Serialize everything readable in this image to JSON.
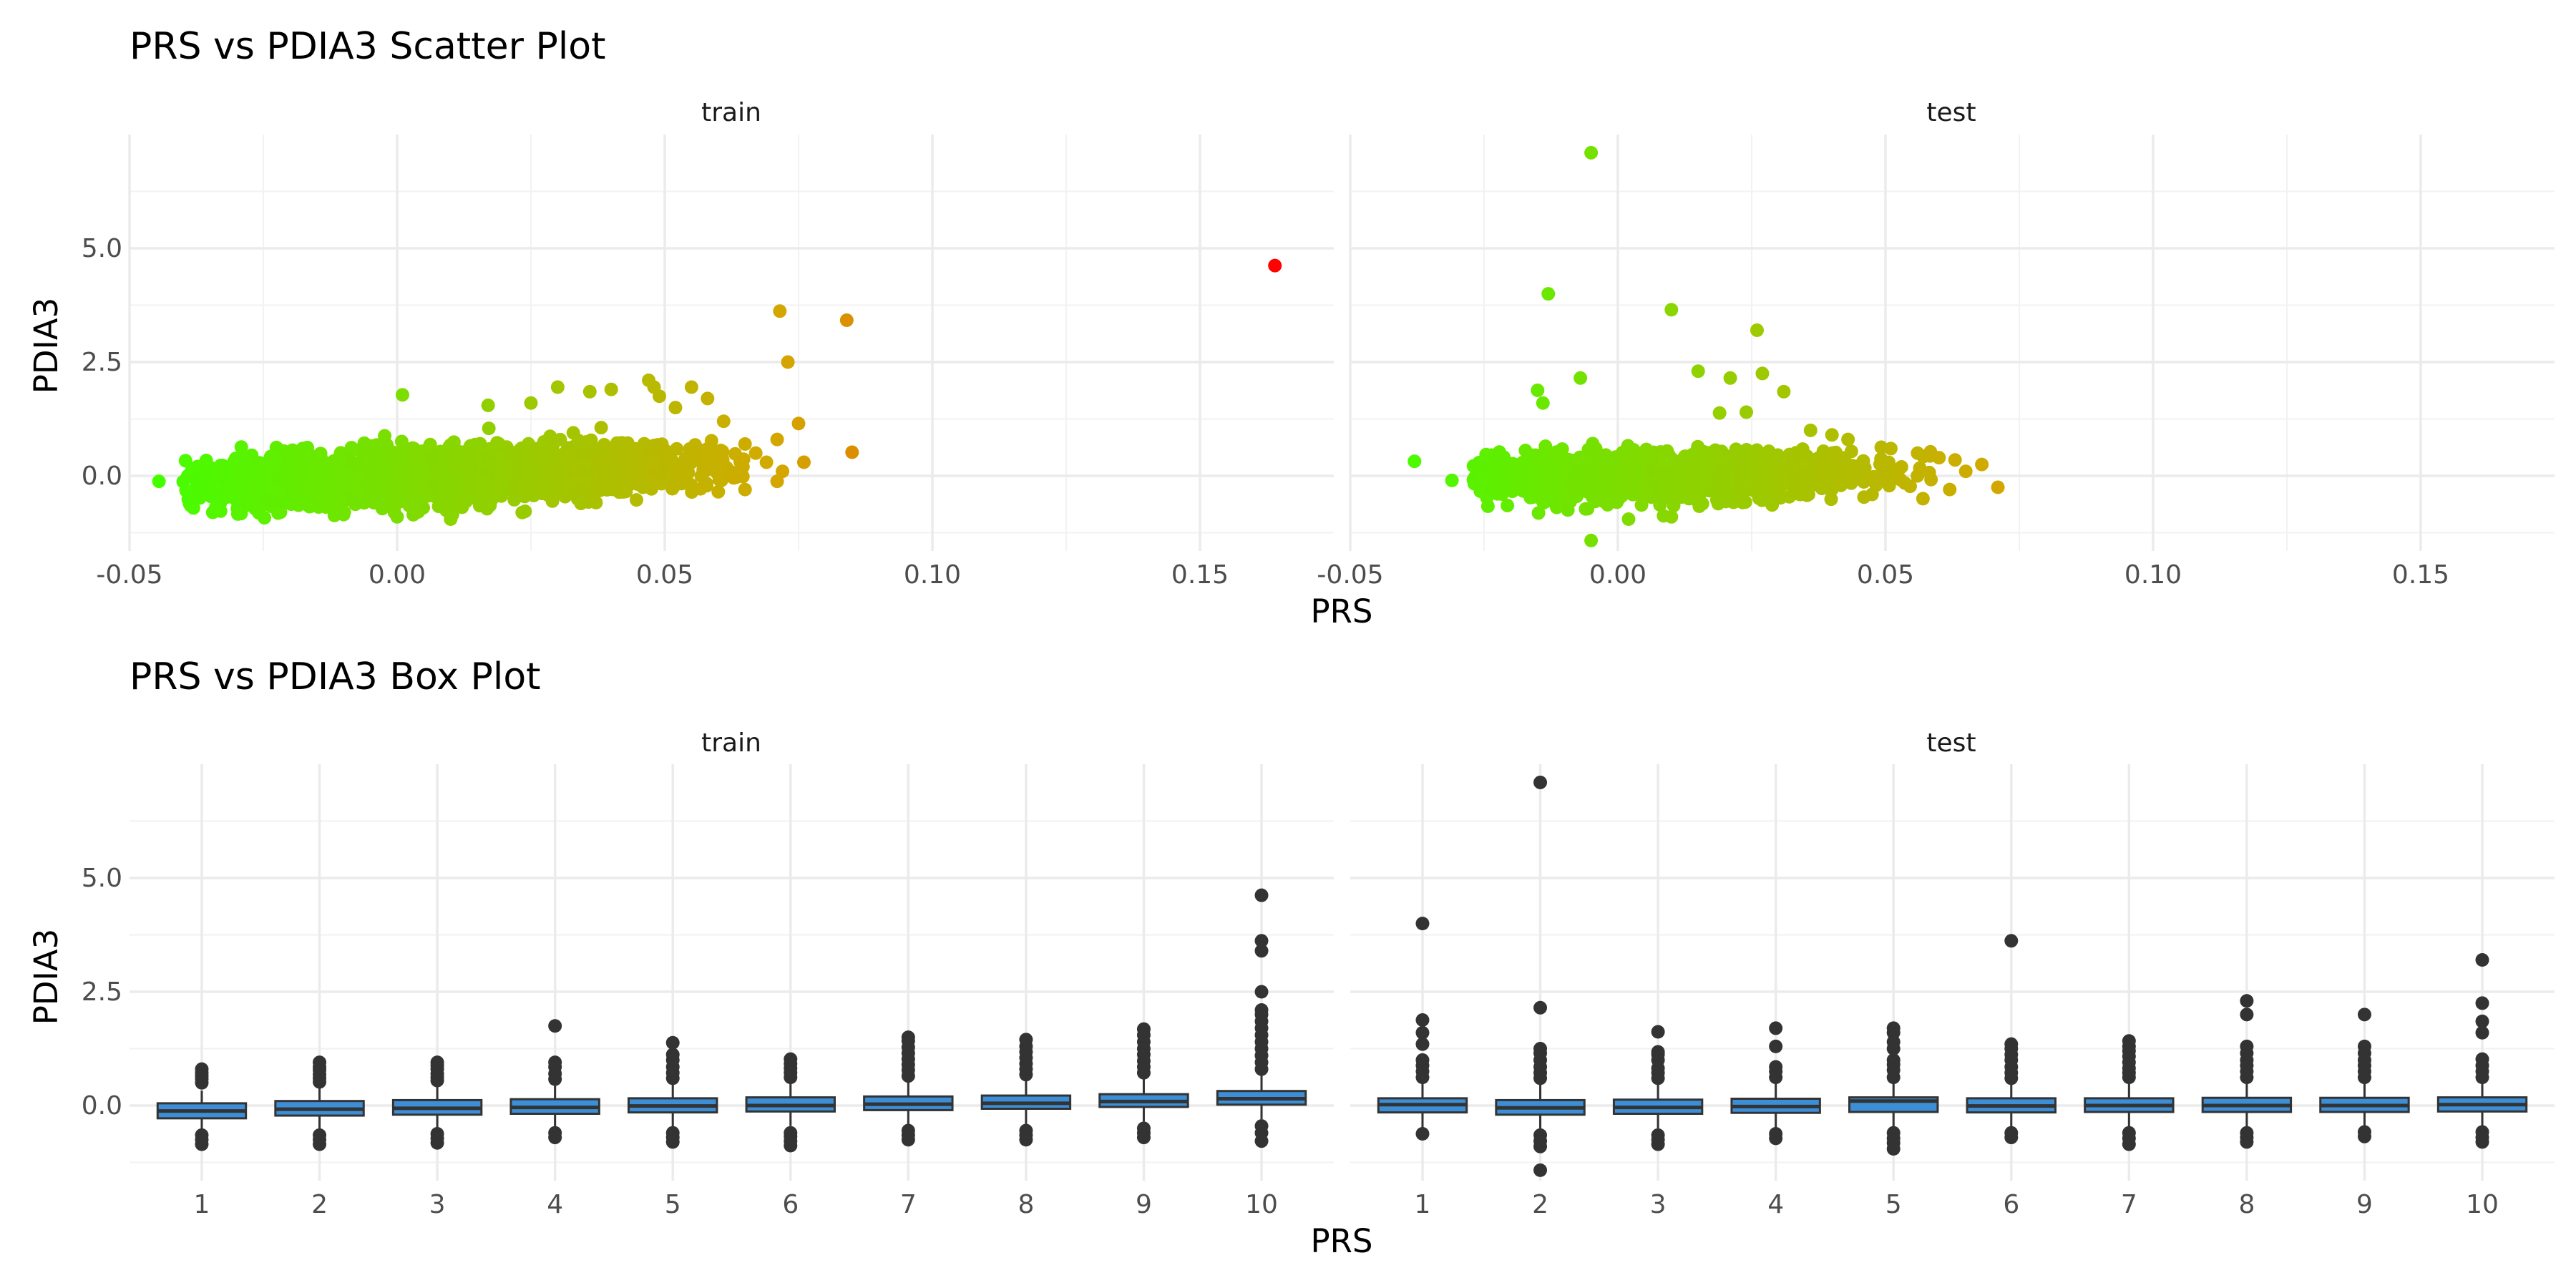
{
  "chart_data": [
    {
      "type": "scatter",
      "title": "PRS vs PDIA3 Scatter Plot",
      "xlabel": "PRS",
      "ylabel": "PDIA3",
      "xlim": [
        -0.05,
        0.175
      ],
      "ylim": [
        -1.65,
        7.5
      ],
      "x_ticks": [
        {
          "v": -0.05,
          "label": "-0.05"
        },
        {
          "v": 0.0,
          "label": "0.00"
        },
        {
          "v": 0.05,
          "label": "0.05"
        },
        {
          "v": 0.1,
          "label": "0.10"
        },
        {
          "v": 0.15,
          "label": "0.15"
        }
      ],
      "y_ticks": [
        {
          "v": 0.0,
          "label": "0.0"
        },
        {
          "v": 2.5,
          "label": "2.5"
        },
        {
          "v": 5.0,
          "label": "5.0"
        }
      ],
      "color_scale": {
        "low": "#44ff00",
        "mid": "#d4a800",
        "high": "#ff0000",
        "min_x": -0.045,
        "max_x": 0.165
      },
      "grid": true,
      "facets": [
        {
          "name": "train",
          "cloud": {
            "x_min": -0.04,
            "x_max": 0.065,
            "x_center": 0.008,
            "y_center": 0.0,
            "y_spread": 0.28,
            "slope": 9.0,
            "n": 2600
          },
          "points": [
            {
              "x": -0.0445,
              "y": -0.12
            },
            {
              "x": -0.037,
              "y": -0.35
            },
            {
              "x": -0.036,
              "y": 0.0
            },
            {
              "x": 0.001,
              "y": 1.78
            },
            {
              "x": 0.017,
              "y": 1.55
            },
            {
              "x": 0.025,
              "y": 1.6
            },
            {
              "x": 0.03,
              "y": 1.95
            },
            {
              "x": 0.036,
              "y": 1.85
            },
            {
              "x": 0.04,
              "y": 1.9
            },
            {
              "x": 0.047,
              "y": 2.1
            },
            {
              "x": 0.049,
              "y": 1.75
            },
            {
              "x": 0.048,
              "y": 1.95
            },
            {
              "x": 0.055,
              "y": 1.95
            },
            {
              "x": 0.058,
              "y": 1.7
            },
            {
              "x": 0.052,
              "y": 1.5
            },
            {
              "x": 0.061,
              "y": 1.2
            },
            {
              "x": 0.065,
              "y": 0.7
            },
            {
              "x": 0.067,
              "y": 0.5
            },
            {
              "x": 0.069,
              "y": 0.3
            },
            {
              "x": 0.071,
              "y": 0.8
            },
            {
              "x": 0.072,
              "y": 0.1
            },
            {
              "x": 0.0715,
              "y": 3.62
            },
            {
              "x": 0.073,
              "y": 2.5
            },
            {
              "x": 0.075,
              "y": 1.15
            },
            {
              "x": 0.076,
              "y": 0.3
            },
            {
              "x": 0.084,
              "y": 3.42
            },
            {
              "x": 0.085,
              "y": 0.52
            },
            {
              "x": 0.065,
              "y": -0.3
            },
            {
              "x": 0.06,
              "y": -0.35
            },
            {
              "x": 0.071,
              "y": -0.12
            },
            {
              "x": 0.0,
              "y": -0.9
            },
            {
              "x": 0.01,
              "y": -0.95
            },
            {
              "x": -0.01,
              "y": -0.85
            },
            {
              "x": 0.164,
              "y": 4.62
            }
          ]
        },
        {
          "name": "test",
          "cloud": {
            "x_min": -0.027,
            "x_max": 0.06,
            "x_center": 0.007,
            "y_center": 0.0,
            "y_spread": 0.26,
            "slope": 3.0,
            "n": 1400
          },
          "points": [
            {
              "x": -0.038,
              "y": 0.32
            },
            {
              "x": -0.031,
              "y": -0.1
            },
            {
              "x": -0.005,
              "y": 7.1
            },
            {
              "x": -0.013,
              "y": 4.0
            },
            {
              "x": 0.01,
              "y": 3.65
            },
            {
              "x": 0.026,
              "y": 3.2
            },
            {
              "x": -0.007,
              "y": 2.15
            },
            {
              "x": -0.015,
              "y": 1.88
            },
            {
              "x": -0.014,
              "y": 1.6
            },
            {
              "x": 0.015,
              "y": 2.3
            },
            {
              "x": 0.021,
              "y": 2.15
            },
            {
              "x": 0.027,
              "y": 2.25
            },
            {
              "x": 0.031,
              "y": 1.85
            },
            {
              "x": 0.019,
              "y": 1.38
            },
            {
              "x": 0.024,
              "y": 1.4
            },
            {
              "x": 0.036,
              "y": 1.0
            },
            {
              "x": 0.04,
              "y": 0.9
            },
            {
              "x": 0.043,
              "y": 0.8
            },
            {
              "x": 0.051,
              "y": 0.6
            },
            {
              "x": 0.056,
              "y": 0.5
            },
            {
              "x": 0.06,
              "y": 0.4
            },
            {
              "x": 0.063,
              "y": 0.35
            },
            {
              "x": 0.065,
              "y": 0.1
            },
            {
              "x": 0.062,
              "y": -0.3
            },
            {
              "x": 0.068,
              "y": 0.25
            },
            {
              "x": 0.071,
              "y": -0.25
            },
            {
              "x": 0.057,
              "y": -0.5
            },
            {
              "x": -0.005,
              "y": -1.42
            },
            {
              "x": 0.002,
              "y": -0.95
            },
            {
              "x": 0.01,
              "y": -0.9
            }
          ]
        }
      ]
    },
    {
      "type": "box",
      "title": "PRS vs PDIA3 Box Plot",
      "xlabel": "PRS",
      "ylabel": "PDIA3",
      "categories": [
        "1",
        "2",
        "3",
        "4",
        "5",
        "6",
        "7",
        "8",
        "9",
        "10"
      ],
      "ylim": [
        -1.65,
        7.5
      ],
      "y_ticks": [
        {
          "v": 0.0,
          "label": "0.0"
        },
        {
          "v": 2.5,
          "label": "2.5"
        },
        {
          "v": 5.0,
          "label": "5.0"
        }
      ],
      "box_fill": "#3c8fd6",
      "box_line": "#333333",
      "grid": true,
      "facets": [
        {
          "name": "train",
          "boxes": [
            {
              "q1": -0.28,
              "median": -0.12,
              "q3": 0.05,
              "lo": -0.58,
              "hi": 0.33,
              "outliers": [
                0.5,
                0.58,
                0.65,
                0.72,
                0.8,
                -0.65,
                -0.75,
                -0.85
              ]
            },
            {
              "q1": -0.22,
              "median": -0.08,
              "q3": 0.1,
              "lo": -0.52,
              "hi": 0.42,
              "outliers": [
                0.52,
                0.6,
                0.68,
                0.78,
                0.85,
                0.95,
                -0.65,
                -0.75,
                -0.85
              ]
            },
            {
              "q1": -0.2,
              "median": -0.06,
              "q3": 0.12,
              "lo": -0.5,
              "hi": 0.44,
              "outliers": [
                0.55,
                0.62,
                0.7,
                0.8,
                0.88,
                0.95,
                -0.62,
                -0.72,
                -0.82
              ]
            },
            {
              "q1": -0.18,
              "median": -0.04,
              "q3": 0.14,
              "lo": -0.48,
              "hi": 0.46,
              "outliers": [
                0.58,
                0.7,
                0.85,
                0.95,
                1.75,
                -0.6,
                -0.7
              ]
            },
            {
              "q1": -0.15,
              "median": -0.01,
              "q3": 0.16,
              "lo": -0.46,
              "hi": 0.5,
              "outliers": [
                0.6,
                0.72,
                0.85,
                1.0,
                1.12,
                1.38,
                -0.6,
                -0.7,
                -0.8
              ]
            },
            {
              "q1": -0.13,
              "median": 0.0,
              "q3": 0.18,
              "lo": -0.45,
              "hi": 0.5,
              "outliers": [
                0.62,
                0.72,
                0.82,
                0.92,
                1.02,
                -0.6,
                -0.68,
                -0.78,
                -0.88
              ]
            },
            {
              "q1": -0.1,
              "median": 0.03,
              "q3": 0.2,
              "lo": -0.42,
              "hi": 0.55,
              "outliers": [
                0.65,
                0.78,
                0.9,
                1.02,
                1.15,
                1.28,
                1.42,
                1.5,
                -0.55,
                -0.65,
                -0.75
              ]
            },
            {
              "q1": -0.07,
              "median": 0.05,
              "q3": 0.22,
              "lo": -0.4,
              "hi": 0.58,
              "outliers": [
                0.68,
                0.8,
                0.92,
                1.05,
                1.18,
                1.3,
                1.45,
                -0.55,
                -0.65,
                -0.75
              ]
            },
            {
              "q1": -0.03,
              "median": 0.09,
              "q3": 0.25,
              "lo": -0.35,
              "hi": 0.62,
              "outliers": [
                0.72,
                0.85,
                0.98,
                1.12,
                1.25,
                1.4,
                1.55,
                1.68,
                -0.5,
                -0.6,
                -0.7
              ]
            },
            {
              "q1": 0.02,
              "median": 0.15,
              "q3": 0.32,
              "lo": -0.3,
              "hi": 0.7,
              "outliers": [
                0.8,
                0.95,
                1.1,
                1.25,
                1.4,
                1.55,
                1.7,
                1.85,
                2.0,
                2.1,
                2.5,
                3.4,
                3.62,
                4.62,
                -0.45,
                -0.6,
                -0.78
              ]
            }
          ]
        },
        {
          "name": "test",
          "boxes": [
            {
              "q1": -0.15,
              "median": 0.02,
              "q3": 0.16,
              "lo": -0.48,
              "hi": 0.5,
              "outliers": [
                0.62,
                0.75,
                0.88,
                1.0,
                1.35,
                1.6,
                1.88,
                4.0,
                -0.62
              ]
            },
            {
              "q1": -0.2,
              "median": -0.05,
              "q3": 0.12,
              "lo": -0.52,
              "hi": 0.46,
              "outliers": [
                0.6,
                0.72,
                0.85,
                1.0,
                1.15,
                1.25,
                2.15,
                7.1,
                -0.65,
                -0.78,
                -0.9,
                -1.42
              ]
            },
            {
              "q1": -0.18,
              "median": -0.04,
              "q3": 0.13,
              "lo": -0.5,
              "hi": 0.47,
              "outliers": [
                0.6,
                0.72,
                0.82,
                1.0,
                1.12,
                1.18,
                1.62,
                -0.65,
                -0.75,
                -0.85
              ]
            },
            {
              "q1": -0.16,
              "median": -0.02,
              "q3": 0.15,
              "lo": -0.48,
              "hi": 0.48,
              "outliers": [
                0.62,
                0.75,
                0.85,
                1.3,
                1.7,
                -0.62,
                -0.72
              ]
            },
            {
              "q1": -0.14,
              "median": 0.1,
              "q3": 0.18,
              "lo": -0.46,
              "hi": 0.5,
              "outliers": [
                0.62,
                0.78,
                0.9,
                1.0,
                1.25,
                1.4,
                1.6,
                1.7,
                -0.6,
                -0.72,
                -0.82,
                -0.95
              ]
            },
            {
              "q1": -0.15,
              "median": -0.01,
              "q3": 0.16,
              "lo": -0.47,
              "hi": 0.49,
              "outliers": [
                0.6,
                0.72,
                0.85,
                1.0,
                1.12,
                1.25,
                1.35,
                3.62,
                -0.6,
                -0.7
              ]
            },
            {
              "q1": -0.14,
              "median": 0.0,
              "q3": 0.16,
              "lo": -0.46,
              "hi": 0.5,
              "outliers": [
                0.62,
                0.72,
                0.82,
                0.95,
                1.08,
                1.2,
                1.3,
                1.42,
                -0.6,
                -0.72,
                -0.85
              ]
            },
            {
              "q1": -0.14,
              "median": 0.0,
              "q3": 0.17,
              "lo": -0.46,
              "hi": 0.5,
              "outliers": [
                0.62,
                0.75,
                0.88,
                1.0,
                1.15,
                1.3,
                2.0,
                2.3,
                -0.6,
                -0.7,
                -0.8
              ]
            },
            {
              "q1": -0.14,
              "median": 0.0,
              "q3": 0.17,
              "lo": -0.46,
              "hi": 0.5,
              "outliers": [
                0.62,
                0.75,
                0.88,
                1.0,
                1.15,
                1.3,
                2.0,
                -0.58,
                -0.68
              ]
            },
            {
              "q1": -0.13,
              "median": 0.02,
              "q3": 0.18,
              "lo": -0.45,
              "hi": 0.52,
              "outliers": [
                0.62,
                0.75,
                0.88,
                1.02,
                1.6,
                1.85,
                2.25,
                3.2,
                -0.58,
                -0.7,
                -0.8
              ]
            }
          ]
        }
      ]
    }
  ]
}
